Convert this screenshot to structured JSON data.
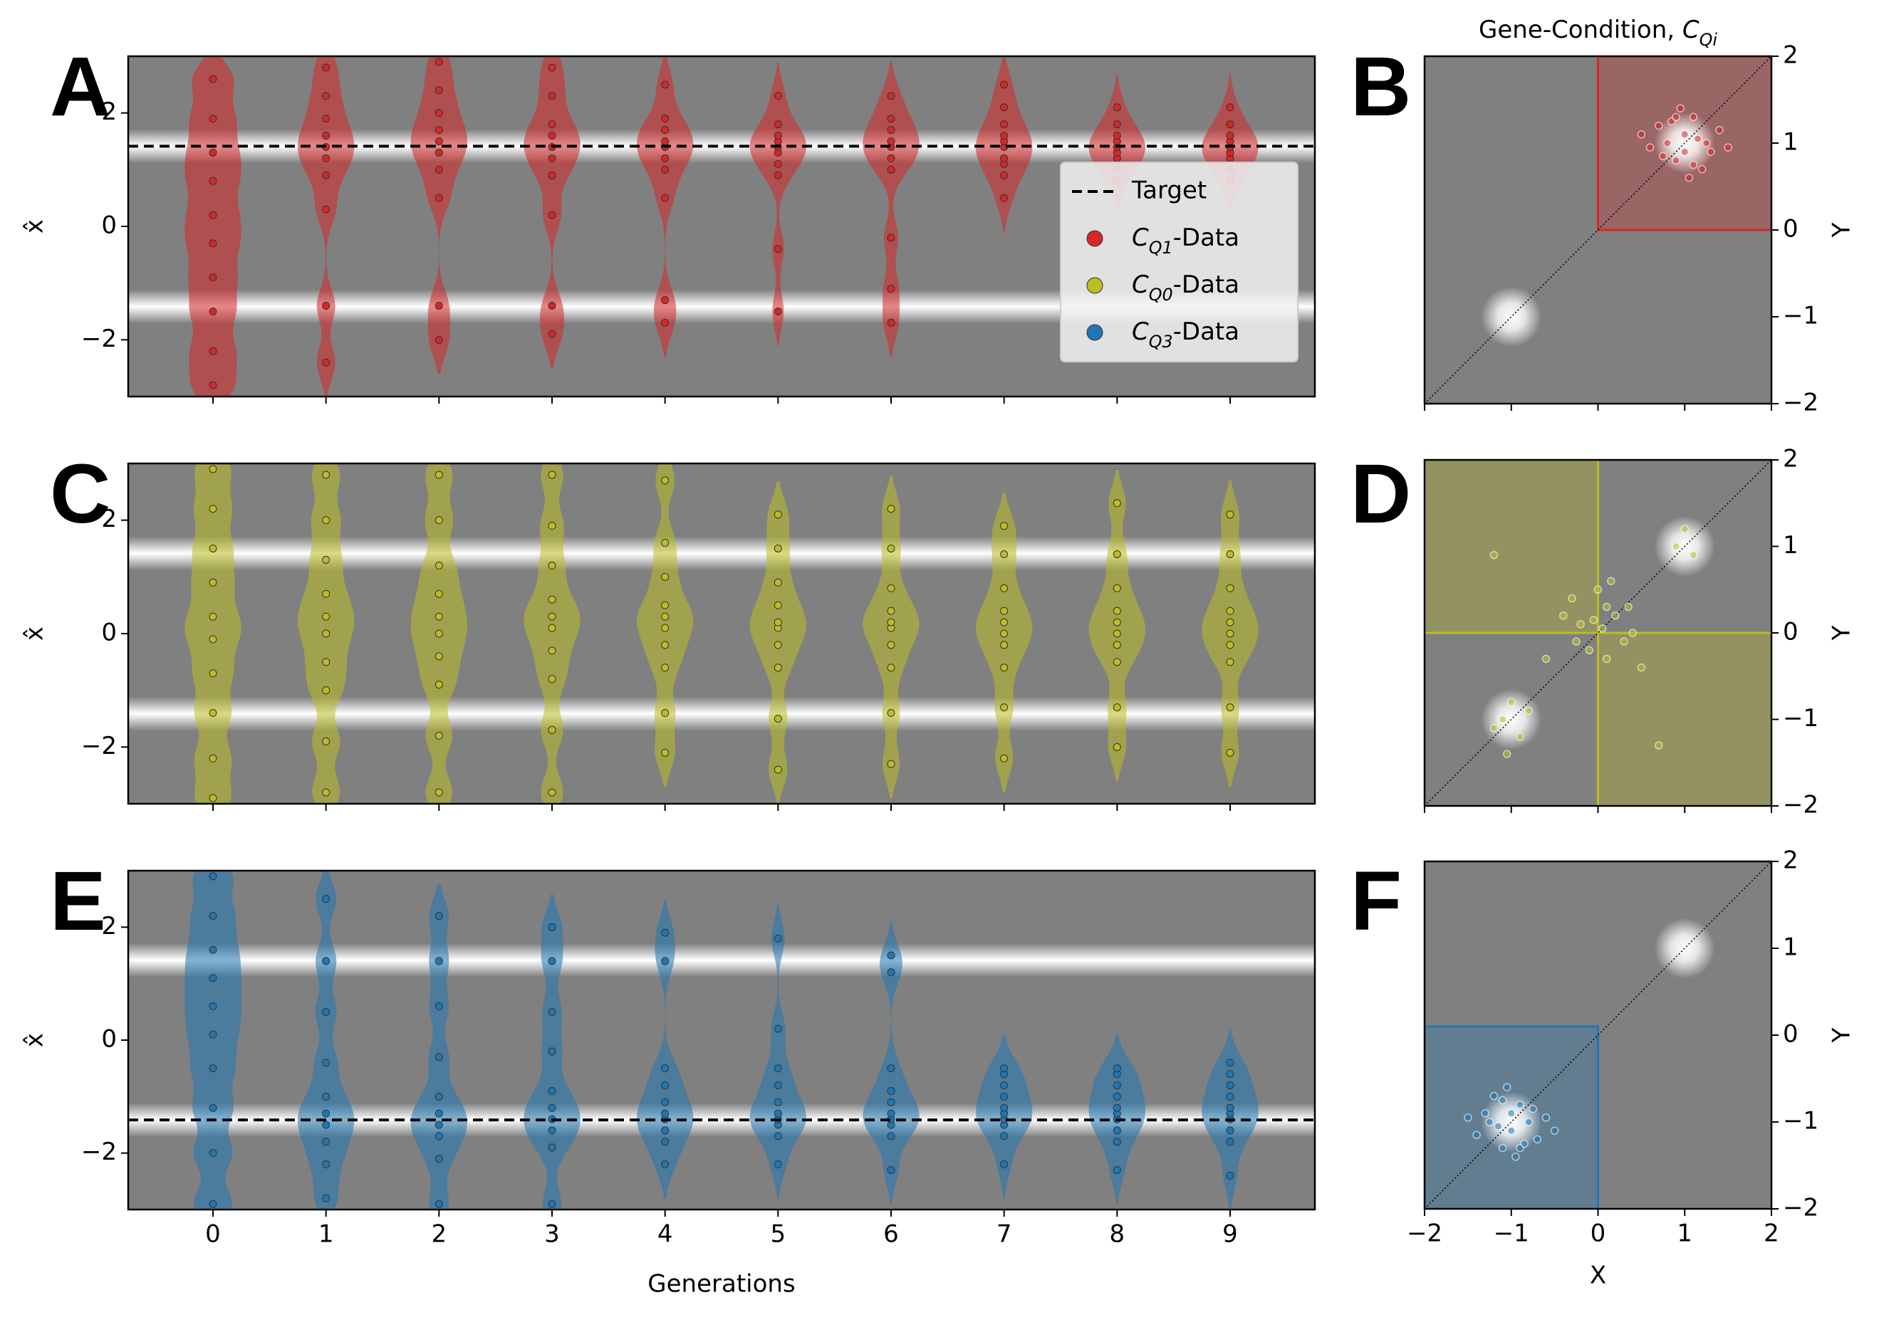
{
  "chart_data": [
    {
      "type": "violin",
      "panel_label": "A",
      "ylabel": "x̂",
      "x": [
        0,
        1,
        2,
        3,
        4,
        5,
        6,
        7,
        8,
        9
      ],
      "xlim": [
        -0.75,
        9.75
      ],
      "xticks": [
        0,
        1,
        2,
        3,
        4,
        5,
        6,
        7,
        8,
        9
      ],
      "show_xtick_labels": false,
      "ylim": [
        -3,
        3
      ],
      "yticks": [
        {
          "value": -2,
          "label": "−2"
        },
        0,
        2
      ],
      "peaks": [
        1.414,
        -1.414
      ],
      "target": 1.414,
      "target_name": "Target",
      "legend": "center right",
      "series": [
        {
          "name": "CQ1-Data",
          "color": "#d62728",
          "values": [
            [
              -2.8,
              -2.2,
              -1.5,
              -0.9,
              -0.3,
              0.2,
              0.8,
              1.3,
              1.9,
              2.6
            ],
            [
              -2.4,
              -1.4,
              0.3,
              0.9,
              1.2,
              1.4,
              1.6,
              1.9,
              2.3,
              2.8
            ],
            [
              -2.0,
              -1.4,
              0.5,
              1.0,
              1.3,
              1.5,
              1.7,
              2.0,
              2.4,
              2.9
            ],
            [
              -1.9,
              -1.4,
              0.2,
              0.9,
              1.2,
              1.4,
              1.6,
              1.8,
              2.3,
              2.8
            ],
            [
              -1.7,
              -1.3,
              0.5,
              1.0,
              1.2,
              1.4,
              1.5,
              1.7,
              1.9,
              2.5
            ],
            [
              -1.5,
              -0.4,
              0.9,
              1.1,
              1.3,
              1.4,
              1.5,
              1.6,
              1.8,
              2.3
            ],
            [
              -1.7,
              -1.1,
              -0.2,
              1.0,
              1.2,
              1.4,
              1.5,
              1.7,
              1.9,
              2.3
            ],
            [
              0.5,
              0.9,
              1.1,
              1.2,
              1.4,
              1.5,
              1.6,
              1.8,
              2.1,
              2.5
            ],
            [
              0.8,
              1.0,
              1.2,
              1.3,
              1.4,
              1.4,
              1.5,
              1.6,
              1.8,
              2.1
            ],
            [
              0.8,
              1.0,
              1.2,
              1.3,
              1.4,
              1.4,
              1.5,
              1.6,
              1.8,
              2.1
            ]
          ]
        }
      ]
    },
    {
      "type": "scatter",
      "panel_label": "B",
      "title": "Gene-Condition, CQi",
      "ylabel": "Y",
      "xlim": [
        -2,
        2
      ],
      "xticks": [
        {
          "value": -2,
          "label": "−2"
        },
        {
          "value": -1,
          "label": "−1"
        },
        0,
        1,
        2
      ],
      "show_xtick_labels": false,
      "ylim": [
        -2,
        2
      ],
      "yticks": [
        {
          "value": -2,
          "label": "−2"
        },
        {
          "value": -1,
          "label": "−1"
        },
        0,
        1,
        2
      ],
      "peaks": [
        [
          1,
          1
        ],
        [
          -1,
          -1
        ]
      ],
      "regions": [
        {
          "x": [
            0,
            2
          ],
          "y": [
            0,
            2
          ]
        }
      ],
      "series": [
        {
          "color": "#d62728",
          "x": [
            0.7,
            0.9,
            1.1,
            1.3,
            0.8,
            1.0,
            1.2,
            0.6,
            1.4,
            0.95,
            1.05,
            0.85,
            1.15,
            0.75,
            1.25,
            1.0,
            0.9,
            1.1,
            0.5,
            1.5
          ],
          "y": [
            1.2,
            0.8,
            1.3,
            0.9,
            1.0,
            1.1,
            0.7,
            0.95,
            1.15,
            1.4,
            0.6,
            1.25,
            1.05,
            0.85,
            1.0,
            0.9,
            1.3,
            0.75,
            1.1,
            0.95
          ]
        }
      ]
    },
    {
      "type": "violin",
      "panel_label": "C",
      "ylabel": "x̂",
      "x": [
        0,
        1,
        2,
        3,
        4,
        5,
        6,
        7,
        8,
        9
      ],
      "xlim": [
        -0.75,
        9.75
      ],
      "xticks": [
        0,
        1,
        2,
        3,
        4,
        5,
        6,
        7,
        8,
        9
      ],
      "show_xtick_labels": false,
      "ylim": [
        -3,
        3
      ],
      "yticks": [
        {
          "value": -2,
          "label": "−2"
        },
        0,
        2
      ],
      "peaks": [
        1.414,
        -1.414
      ],
      "series": [
        {
          "name": "CQ0-Data",
          "color": "#bcbd22",
          "values": [
            [
              -2.9,
              -2.2,
              -1.4,
              -0.7,
              -0.1,
              0.3,
              0.9,
              1.5,
              2.2,
              2.9
            ],
            [
              -2.8,
              -1.9,
              -1.0,
              -0.5,
              0,
              0.3,
              0.7,
              1.3,
              2.0,
              2.8
            ],
            [
              -2.8,
              -1.8,
              -0.9,
              -0.4,
              0,
              0.3,
              0.7,
              1.2,
              2.0,
              2.8
            ],
            [
              -2.8,
              -1.7,
              -0.8,
              -0.3,
              0.1,
              0.3,
              0.6,
              1.2,
              1.9,
              2.8
            ],
            [
              -2.1,
              -1.4,
              -0.6,
              -0.2,
              0.1,
              0.3,
              0.5,
              1.0,
              1.6,
              2.7
            ],
            [
              -2.4,
              -1.5,
              -0.6,
              -0.2,
              0.1,
              0.2,
              0.5,
              0.9,
              1.5,
              2.1
            ],
            [
              -2.3,
              -1.4,
              -0.6,
              -0.2,
              0.1,
              0.2,
              0.4,
              0.8,
              1.5,
              2.2
            ],
            [
              -2.2,
              -1.3,
              -0.6,
              -0.2,
              0,
              0.2,
              0.4,
              0.8,
              1.4,
              1.9
            ],
            [
              -2.0,
              -1.3,
              -0.5,
              -0.2,
              0,
              0.2,
              0.4,
              0.8,
              1.4,
              2.3
            ],
            [
              -2.1,
              -1.3,
              -0.5,
              -0.2,
              0,
              0.2,
              0.4,
              0.8,
              1.4,
              2.1
            ]
          ]
        }
      ]
    },
    {
      "type": "scatter",
      "panel_label": "D",
      "ylabel": "Y",
      "xlim": [
        -2,
        2
      ],
      "xticks": [
        {
          "value": -2,
          "label": "−2"
        },
        {
          "value": -1,
          "label": "−1"
        },
        0,
        1,
        2
      ],
      "show_xtick_labels": false,
      "ylim": [
        -2,
        2
      ],
      "yticks": [
        {
          "value": -2,
          "label": "−2"
        },
        {
          "value": -1,
          "label": "−1"
        },
        0,
        1,
        2
      ],
      "peaks": [
        [
          1,
          1
        ],
        [
          -1,
          -1
        ]
      ],
      "regions": [
        {
          "x": [
            -2,
            0
          ],
          "y": [
            0,
            2
          ]
        },
        {
          "x": [
            0,
            2
          ],
          "y": [
            -2,
            0
          ]
        }
      ],
      "series": [
        {
          "color": "#bcbd22",
          "x": [
            -0.2,
            0.1,
            0.3,
            -0.1,
            0.0,
            0.2,
            -0.3,
            0.4,
            0.1,
            -0.05,
            0.15,
            -0.25,
            0.35,
            0.05,
            -0.4,
            0.5,
            -1.1,
            -0.9,
            -1.0,
            -1.2,
            -0.8,
            -1.05,
            0.9,
            1.1,
            1.0,
            -1.2,
            0.7,
            -0.6
          ],
          "y": [
            0.1,
            0.3,
            -0.1,
            -0.2,
            0.5,
            0.2,
            0.4,
            0.0,
            -0.3,
            0.15,
            0.6,
            -0.1,
            0.3,
            0.05,
            0.2,
            -0.4,
            -1.0,
            -1.2,
            -0.8,
            -1.1,
            -0.9,
            -1.4,
            1.0,
            0.9,
            1.2,
            0.9,
            -1.3,
            -0.3
          ]
        }
      ]
    },
    {
      "type": "violin",
      "panel_label": "E",
      "ylabel": "x̂",
      "xlabel": "Generations",
      "x": [
        0,
        1,
        2,
        3,
        4,
        5,
        6,
        7,
        8,
        9
      ],
      "xlim": [
        -0.75,
        9.75
      ],
      "xticks": [
        0,
        1,
        2,
        3,
        4,
        5,
        6,
        7,
        8,
        9
      ],
      "ylim": [
        -3,
        3
      ],
      "yticks": [
        {
          "value": -2,
          "label": "−2"
        },
        0,
        2
      ],
      "peaks": [
        1.414,
        -1.414
      ],
      "target": -1.414,
      "series": [
        {
          "name": "CQ3-Data",
          "color": "#1f77b4",
          "values": [
            [
              -2.9,
              -2.0,
              -1.2,
              -0.5,
              0.1,
              0.6,
              1.1,
              1.6,
              2.2,
              2.9
            ],
            [
              -2.8,
              -2.2,
              -1.8,
              -1.5,
              -1.3,
              -1.0,
              -0.4,
              0.5,
              1.4,
              2.5
            ],
            [
              -2.9,
              -2.1,
              -1.7,
              -1.5,
              -1.3,
              -1.0,
              -0.3,
              0.6,
              1.4,
              2.2
            ],
            [
              -2.9,
              -1.9,
              -1.6,
              -1.4,
              -1.2,
              -0.9,
              -0.2,
              0.5,
              1.4,
              2.0
            ],
            [
              -2.2,
              -1.8,
              -1.6,
              -1.4,
              -1.3,
              -1.1,
              -0.8,
              -0.5,
              1.4,
              1.9
            ],
            [
              -2.2,
              -1.7,
              -1.5,
              -1.4,
              -1.3,
              -1.1,
              -0.8,
              -0.5,
              0.2,
              1.8
            ],
            [
              -2.3,
              -1.7,
              -1.5,
              -1.4,
              -1.3,
              -1.1,
              -0.9,
              -0.5,
              1.2,
              1.5
            ],
            [
              -2.2,
              -1.7,
              -1.5,
              -1.4,
              -1.3,
              -1.2,
              -1.0,
              -0.8,
              -0.6,
              -0.5
            ],
            [
              -2.3,
              -1.8,
              -1.6,
              -1.4,
              -1.3,
              -1.2,
              -1.0,
              -0.8,
              -0.6,
              -0.5
            ],
            [
              -2.4,
              -1.8,
              -1.6,
              -1.4,
              -1.3,
              -1.2,
              -1.0,
              -0.8,
              -0.6,
              -0.4
            ]
          ]
        }
      ]
    },
    {
      "type": "scatter",
      "panel_label": "F",
      "ylabel": "Y",
      "xlabel": "X",
      "xlim": [
        -2,
        2
      ],
      "xticks": [
        {
          "value": -2,
          "label": "−2"
        },
        {
          "value": -1,
          "label": "−1"
        },
        0,
        1,
        2
      ],
      "ylim": [
        -2,
        2
      ],
      "yticks": [
        {
          "value": -2,
          "label": "−2"
        },
        {
          "value": -1,
          "label": "−1"
        },
        0,
        1,
        2
      ],
      "peaks": [
        [
          1,
          1
        ],
        [
          -1,
          -1
        ]
      ],
      "regions": [
        {
          "x": [
            -2,
            0
          ],
          "y": [
            -2,
            0.1
          ]
        }
      ],
      "series": [
        {
          "color": "#1f77b4",
          "x": [
            -0.7,
            -0.9,
            -1.1,
            -1.3,
            -0.8,
            -1.0,
            -1.2,
            -0.6,
            -1.4,
            -0.95,
            -1.05,
            -0.85,
            -1.15,
            -0.75,
            -1.25,
            -1.0,
            -0.9,
            -1.1,
            -0.5,
            -1.5
          ],
          "y": [
            -1.2,
            -0.8,
            -1.3,
            -0.9,
            -1.0,
            -1.1,
            -0.7,
            -0.95,
            -1.15,
            -1.4,
            -0.6,
            -1.25,
            -1.05,
            -0.85,
            -1.0,
            -0.9,
            -1.3,
            -0.75,
            -1.1,
            -0.95
          ]
        }
      ]
    }
  ]
}
